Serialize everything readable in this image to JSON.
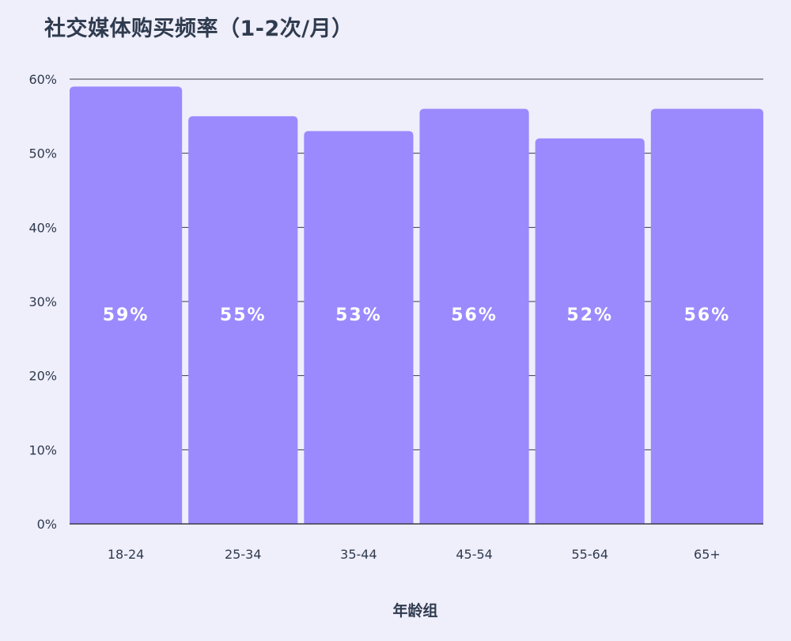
{
  "chart_data": {
    "type": "bar",
    "title": "社交媒体购买频率（1-2次/月）",
    "xlabel": "年龄组",
    "ylabel": "",
    "categories": [
      "18-24",
      "25-34",
      "35-44",
      "45-54",
      "55-64",
      "65+"
    ],
    "values": [
      59,
      55,
      53,
      56,
      52,
      56
    ],
    "data_labels": [
      "59%",
      "55%",
      "53%",
      "56%",
      "52%",
      "56%"
    ],
    "y_ticks": [
      0,
      10,
      20,
      30,
      40,
      50,
      60
    ],
    "y_tick_labels": [
      "0%",
      "10%",
      "20%",
      "30%",
      "40%",
      "50%",
      "60%"
    ],
    "ylim": [
      0,
      60
    ],
    "grid": true,
    "legend": "none",
    "colors": {
      "bar": "#9a8afe",
      "background": "#efeefb",
      "grid": "#3a3a4a",
      "text": "#2f3b4e",
      "label": "#ffffff"
    }
  }
}
